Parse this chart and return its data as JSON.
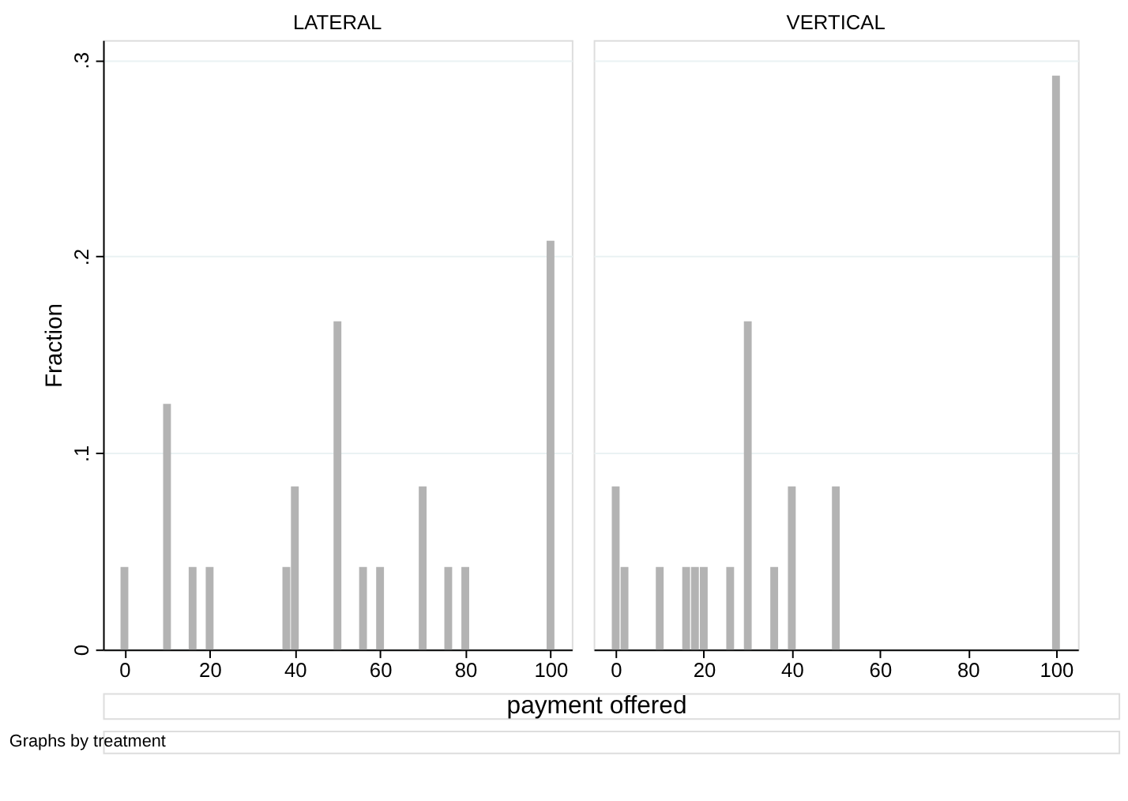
{
  "chart_data": [
    {
      "type": "bar",
      "title": "LATERAL",
      "ylabel": "Fraction",
      "xlabel": "payment offered",
      "x": [
        0,
        10,
        16,
        20,
        38,
        40,
        50,
        56,
        60,
        70,
        76,
        80,
        100
      ],
      "values": [
        0.042,
        0.125,
        0.042,
        0.042,
        0.042,
        0.083,
        0.167,
        0.042,
        0.042,
        0.083,
        0.042,
        0.042,
        0.208
      ],
      "color": "#b3b3b3",
      "xlim": [
        -5,
        105
      ],
      "xticks": [
        0,
        20,
        40,
        60,
        80,
        100
      ],
      "ylim": [
        0,
        0.31
      ],
      "yticks": [
        0,
        {
          "value": 0.1,
          "label": ".1"
        },
        {
          "value": 0.2,
          "label": ".2"
        },
        {
          "value": 0.3,
          "label": ".3"
        }
      ],
      "grid": "y"
    },
    {
      "type": "bar",
      "title": "VERTICAL",
      "annotations": [
        "Graphs by treatment"
      ],
      "x": [
        0,
        2,
        10,
        16,
        18,
        20,
        26,
        30,
        36,
        40,
        50,
        100
      ],
      "values": [
        0.083,
        0.042,
        0.042,
        0.042,
        0.042,
        0.042,
        0.042,
        0.167,
        0.042,
        0.083,
        0.083,
        0.292
      ],
      "color": "#b3b3b3",
      "xlim": [
        -5,
        105
      ],
      "xticks": [
        0,
        20,
        40,
        60,
        80,
        100
      ],
      "ylim": [
        0,
        0.31
      ],
      "yticks": [
        0,
        0.1,
        0.2,
        0.3
      ],
      "grid": "y",
      "tick_labels": "x"
    }
  ]
}
